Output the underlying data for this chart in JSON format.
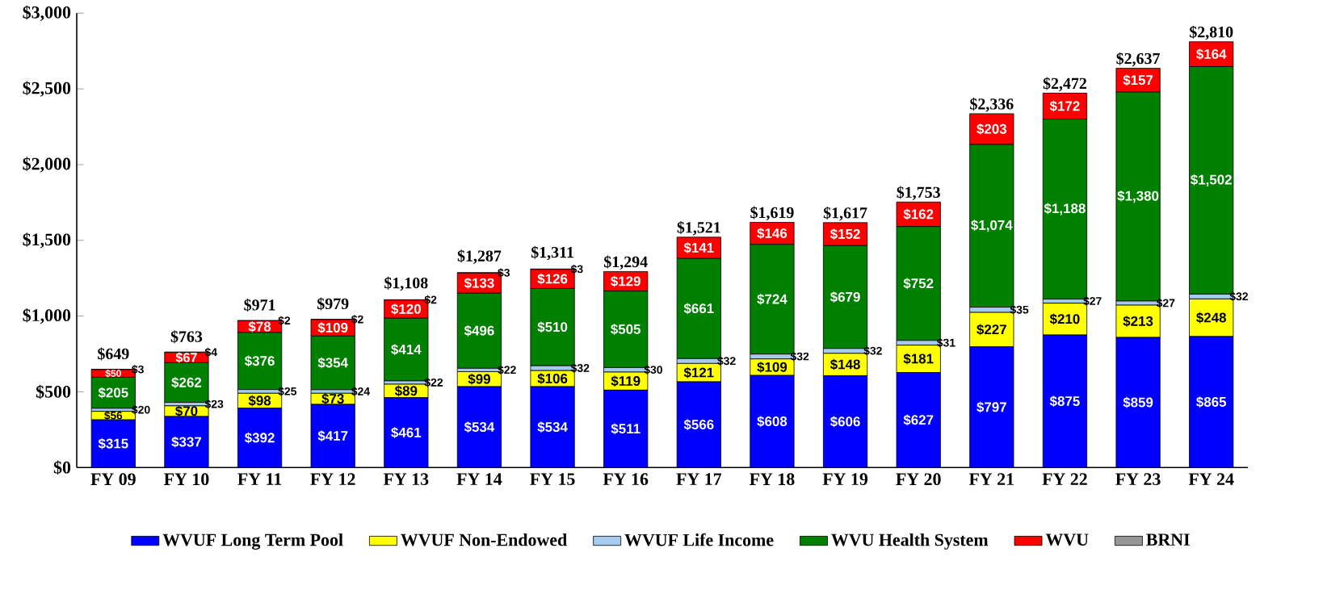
{
  "chart_data": {
    "type": "bar",
    "stacked": true,
    "categories": [
      "FY 09",
      "FY 10",
      "FY 11",
      "FY 12",
      "FY 13",
      "FY 14",
      "FY 15",
      "FY 16",
      "FY 17",
      "FY 18",
      "FY 19",
      "FY 20",
      "FY 21",
      "FY 22",
      "FY 23",
      "FY 24"
    ],
    "series": [
      {
        "name": "WVUF Long Term Pool",
        "color": "#0000ff",
        "values": [
          315,
          337,
          392,
          417,
          461,
          534,
          534,
          511,
          566,
          608,
          606,
          627,
          797,
          875,
          859,
          865
        ],
        "value_labels": [
          "$315",
          "$337",
          "$392",
          "$417",
          "$461",
          "$534",
          "$534",
          "$511",
          "$566",
          "$608",
          "$606",
          "$627",
          "$797",
          "$875",
          "$859",
          "$865"
        ]
      },
      {
        "name": "WVUF Non-Endowed",
        "color": "#ffff00",
        "values": [
          56,
          70,
          98,
          73,
          89,
          99,
          106,
          119,
          121,
          109,
          148,
          181,
          227,
          210,
          213,
          248
        ],
        "value_labels": [
          "$56",
          "$70",
          "$98",
          "$73",
          "$89",
          "$99",
          "$106",
          "$119",
          "$121",
          "$109",
          "$148",
          "$181",
          "$227",
          "$210",
          "$213",
          "$248"
        ]
      },
      {
        "name": "WVUF Life Income",
        "color": "#a6caf0",
        "values": [
          20,
          23,
          25,
          24,
          22,
          22,
          32,
          30,
          32,
          32,
          32,
          31,
          35,
          27,
          27,
          32
        ],
        "value_labels": [
          "$20",
          "$23",
          "$25",
          "$24",
          "$22",
          "$22",
          "$32",
          "$30",
          "$32",
          "$32",
          "$32",
          "$31",
          "$35",
          "$27",
          "$27",
          "$32"
        ]
      },
      {
        "name": "WVU Health System",
        "color": "#008000",
        "values": [
          205,
          262,
          376,
          354,
          414,
          496,
          510,
          505,
          661,
          724,
          679,
          752,
          1074,
          1188,
          1380,
          1502
        ],
        "value_labels": [
          "$205",
          "$262",
          "$376",
          "$354",
          "$414",
          "$496",
          "$510",
          "$505",
          "$661",
          "$724",
          "$679",
          "$752",
          "$1,074",
          "$1,188",
          "$1,380",
          "$1,502"
        ]
      },
      {
        "name": "WVU",
        "color": "#ff0000",
        "values": [
          50,
          67,
          78,
          109,
          120,
          133,
          126,
          129,
          141,
          146,
          152,
          162,
          203,
          172,
          157,
          164
        ],
        "value_labels": [
          "$50",
          "$67",
          "$78",
          "$109",
          "$120",
          "$133",
          "$126",
          "$129",
          "$141",
          "$146",
          "$152",
          "$162",
          "$203",
          "$172",
          "$157",
          "$164"
        ]
      },
      {
        "name": "BRNI",
        "color": "#969696",
        "values": [
          3,
          4,
          2,
          2,
          2,
          3,
          3,
          null,
          null,
          null,
          null,
          null,
          null,
          null,
          null,
          null
        ],
        "value_labels": [
          "$3",
          "$4",
          "$2",
          "$2",
          "$2",
          "$3",
          "$3",
          null,
          null,
          null,
          null,
          null,
          null,
          null,
          null,
          null
        ]
      }
    ],
    "totals": [
      "$649",
      "$763",
      "$971",
      "$979",
      "$1,108",
      "$1,287",
      "$1,311",
      "$1,294",
      "$1,521",
      "$1,619",
      "$1,617",
      "$1,753",
      "$2,336",
      "$2,472",
      "$2,637",
      "$2,810"
    ],
    "ylim": [
      0,
      3000
    ],
    "yticks": [
      {
        "value": 0,
        "label": "$0"
      },
      {
        "value": 500,
        "label": "$500"
      },
      {
        "value": 1000,
        "label": "$1,000"
      },
      {
        "value": 1500,
        "label": "$1,500"
      },
      {
        "value": 2000,
        "label": "$2,000"
      },
      {
        "value": 2500,
        "label": "$2,500"
      },
      {
        "value": 3000,
        "label": "$3,000"
      }
    ],
    "legend": "bottom"
  }
}
